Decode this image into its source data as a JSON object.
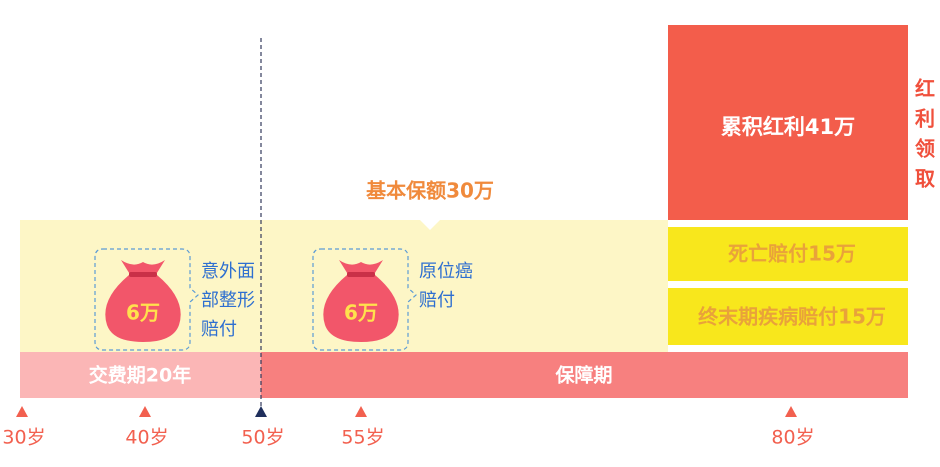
{
  "bonus": {
    "label": "累积红利41万",
    "side_label": [
      "红",
      "利",
      "领",
      "取"
    ]
  },
  "base": {
    "label": "基本保额30万"
  },
  "payouts": [
    "死亡赔付15万",
    "终末期疾病赔付15万"
  ],
  "bags": [
    {
      "amount": "6万",
      "text_lines": [
        "意外面",
        "部整形",
        "赔付"
      ]
    },
    {
      "amount": "6万",
      "text_lines": [
        "原位癌",
        "赔付"
      ]
    }
  ],
  "phases": {
    "payment": "交费期20年",
    "coverage": "保障期"
  },
  "ages": [
    "30岁",
    "40岁",
    "50岁",
    "55岁",
    "80岁"
  ]
}
